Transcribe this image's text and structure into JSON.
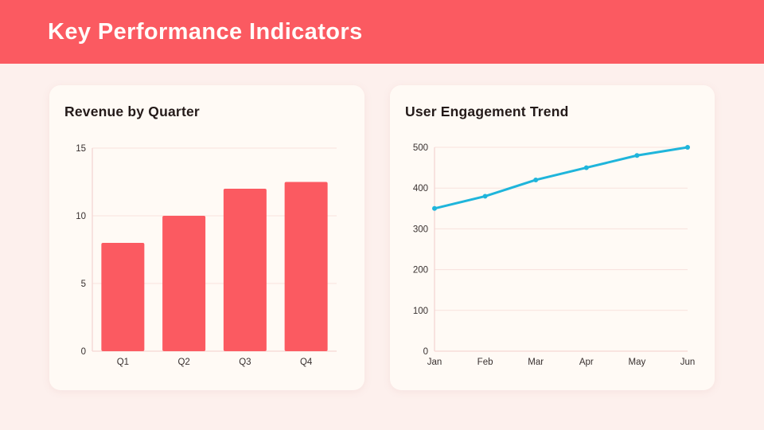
{
  "header": {
    "title": "Key Performance Indicators",
    "bg_color": "#fb5a61",
    "text_color": "#fffcfa"
  },
  "theme": {
    "page_bg": "#fdf0ed",
    "card_bg": "#fffaf5",
    "grid_color": "#f8e1dd",
    "axis_color": "#f5d6d3",
    "tick_color": "#38302f",
    "title_color": "#241a19",
    "accent": "#fb5a61"
  },
  "chart_data": [
    {
      "type": "bar",
      "title": "Revenue by Quarter",
      "categories": [
        "Q1",
        "Q2",
        "Q3",
        "Q4"
      ],
      "values": [
        8,
        10,
        12,
        12.5
      ],
      "xlabel": "",
      "ylabel": "",
      "ylim": [
        0,
        15
      ],
      "yticks": [
        0,
        5,
        10,
        15
      ],
      "grid": true,
      "legend": false,
      "bar_color": "#fb5a61"
    },
    {
      "type": "line",
      "title": "User Engagement Trend",
      "categories": [
        "Jan",
        "Feb",
        "Mar",
        "Apr",
        "May",
        "Jun"
      ],
      "values": [
        350,
        380,
        420,
        450,
        480,
        500
      ],
      "xlabel": "",
      "ylabel": "",
      "ylim": [
        0,
        500
      ],
      "yticks": [
        0,
        100,
        200,
        300,
        400,
        500
      ],
      "grid": true,
      "legend": false,
      "line_color": "#1fb5db",
      "marker": "dot"
    }
  ]
}
